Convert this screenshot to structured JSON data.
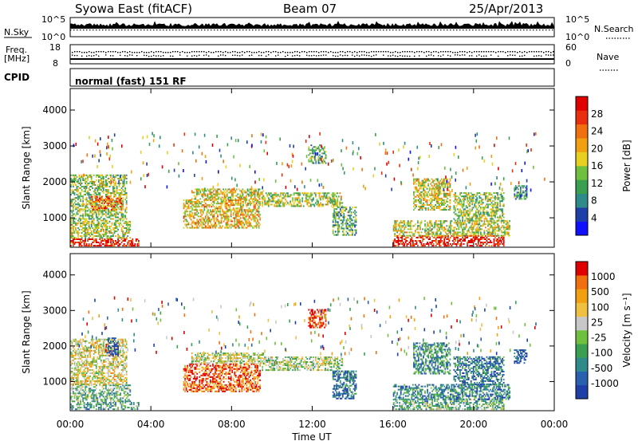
{
  "header": {
    "station": "Syowa East (fitACF)",
    "beam": "Beam 07",
    "date": "25/Apr/2013"
  },
  "top_panels": {
    "nsky_label": "N.Sky",
    "nsearch_label": "N.Search",
    "freq_label_1": "Freq.",
    "freq_label_2": "[MHz]",
    "nave_label": "Nave",
    "cpid_label": "CPID",
    "cpid_value": "normal (fast) 151 RF",
    "nsky_ticks": [
      "10^5",
      "10^0"
    ],
    "nsearch_ticks": [
      "10^5",
      "10^0"
    ],
    "freq_ticks": [
      "18",
      "8"
    ],
    "nave_ticks": [
      "60",
      "0"
    ]
  },
  "chart_data": [
    {
      "type": "heatmap",
      "name": "power",
      "ylabel": "Slant Range [km]",
      "xlabel": "Time UT",
      "x_ticks": [
        "00:00",
        "04:00",
        "08:00",
        "12:00",
        "16:00",
        "20:00",
        "00:00"
      ],
      "x_tick_hours": [
        0,
        4,
        8,
        12,
        16,
        20,
        24
      ],
      "y_ticks": [
        1000,
        2000,
        3000,
        4000
      ],
      "xlim": [
        0,
        24
      ],
      "ylim": [
        180,
        4600
      ],
      "colorbar": {
        "label": "Power [dB]",
        "ticks": [
          "4",
          "8",
          "12",
          "16",
          "20",
          "24",
          "28"
        ],
        "colors": [
          "#1010ff",
          "#1f3fa8",
          "#2f8a8a",
          "#3aa050",
          "#70c040",
          "#e8d020",
          "#f0a010",
          "#f07010",
          "#e83010",
          "#e00000"
        ]
      },
      "echo_regions": [
        {
          "t0": 0.0,
          "t1": 3.4,
          "r0": 200,
          "r1": 420,
          "level": 0.9
        },
        {
          "t0": 0.0,
          "t1": 3.0,
          "r0": 420,
          "r1": 900,
          "level": 0.5
        },
        {
          "t0": 0.0,
          "t1": 2.8,
          "r0": 900,
          "r1": 2200,
          "level": 0.45
        },
        {
          "t0": 1.0,
          "t1": 2.6,
          "r0": 1200,
          "r1": 1600,
          "level": 0.75
        },
        {
          "t0": 5.6,
          "t1": 9.4,
          "r0": 700,
          "r1": 1500,
          "level": 0.6
        },
        {
          "t0": 6.0,
          "t1": 9.6,
          "r0": 1500,
          "r1": 1800,
          "level": 0.55
        },
        {
          "t0": 9.5,
          "t1": 13.5,
          "r0": 1300,
          "r1": 1700,
          "level": 0.5
        },
        {
          "t0": 11.8,
          "t1": 12.7,
          "r0": 2500,
          "r1": 3000,
          "level": 0.4
        },
        {
          "t0": 13.0,
          "t1": 14.2,
          "r0": 500,
          "r1": 1300,
          "level": 0.35
        },
        {
          "t0": 16.0,
          "t1": 21.5,
          "r0": 200,
          "r1": 480,
          "level": 0.95
        },
        {
          "t0": 16.0,
          "t1": 21.8,
          "r0": 480,
          "r1": 900,
          "level": 0.5
        },
        {
          "t0": 17.0,
          "t1": 18.8,
          "r0": 1200,
          "r1": 2100,
          "level": 0.55
        },
        {
          "t0": 19.0,
          "t1": 21.5,
          "r0": 900,
          "r1": 1700,
          "level": 0.45
        },
        {
          "t0": 22.0,
          "t1": 22.6,
          "r0": 1500,
          "r1": 1900,
          "level": 0.3
        }
      ]
    },
    {
      "type": "heatmap",
      "name": "velocity",
      "ylabel": "Slant Range [km]",
      "xlabel": "Time UT",
      "x_ticks": [
        "00:00",
        "04:00",
        "08:00",
        "12:00",
        "16:00",
        "20:00",
        "00:00"
      ],
      "x_tick_hours": [
        0,
        4,
        8,
        12,
        16,
        20,
        24
      ],
      "y_ticks": [
        1000,
        2000,
        3000,
        4000
      ],
      "xlim": [
        0,
        24
      ],
      "ylim": [
        180,
        4600
      ],
      "colorbar": {
        "label": "Velocity [m s⁻¹]",
        "ticks": [
          "1000",
          "500",
          "100",
          "25",
          "-25",
          "-100",
          "-500",
          "-1000"
        ],
        "colors": [
          "#1f3fa8",
          "#2a60b0",
          "#2f8a8a",
          "#3aa050",
          "#70c040",
          "#c8c8c8",
          "#f0c040",
          "#f0a010",
          "#f07010",
          "#e00000"
        ]
      },
      "echo_regions": [
        {
          "t0": 0.0,
          "t1": 3.4,
          "r0": 200,
          "r1": 420,
          "level": 0.35
        },
        {
          "t0": 0.0,
          "t1": 3.0,
          "r0": 420,
          "r1": 900,
          "level": 0.4
        },
        {
          "t0": 0.0,
          "t1": 2.8,
          "r0": 900,
          "r1": 2200,
          "level": 0.6
        },
        {
          "t0": 1.8,
          "t1": 2.4,
          "r0": 1700,
          "r1": 2200,
          "level": 0.05
        },
        {
          "t0": 5.6,
          "t1": 9.4,
          "r0": 700,
          "r1": 1500,
          "level": 0.85
        },
        {
          "t0": 6.0,
          "t1": 9.6,
          "r0": 1500,
          "r1": 1800,
          "level": 0.55
        },
        {
          "t0": 9.5,
          "t1": 13.5,
          "r0": 1300,
          "r1": 1700,
          "level": 0.5
        },
        {
          "t0": 11.8,
          "t1": 12.7,
          "r0": 2500,
          "r1": 3000,
          "level": 0.9
        },
        {
          "t0": 13.0,
          "t1": 14.2,
          "r0": 500,
          "r1": 1300,
          "level": 0.2
        },
        {
          "t0": 16.0,
          "t1": 21.5,
          "r0": 200,
          "r1": 480,
          "level": 0.4
        },
        {
          "t0": 16.0,
          "t1": 21.8,
          "r0": 480,
          "r1": 900,
          "level": 0.25
        },
        {
          "t0": 17.0,
          "t1": 18.8,
          "r0": 1200,
          "r1": 2100,
          "level": 0.3
        },
        {
          "t0": 19.0,
          "t1": 21.5,
          "r0": 900,
          "r1": 1700,
          "level": 0.2
        },
        {
          "t0": 22.0,
          "t1": 22.6,
          "r0": 1500,
          "r1": 1900,
          "level": 0.05
        }
      ]
    }
  ]
}
